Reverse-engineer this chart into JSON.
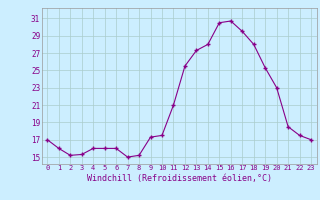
{
  "x": [
    0,
    1,
    2,
    3,
    4,
    5,
    6,
    7,
    8,
    9,
    10,
    11,
    12,
    13,
    14,
    15,
    16,
    17,
    18,
    19,
    20,
    21,
    22,
    23
  ],
  "y": [
    17,
    16,
    15.2,
    15.3,
    16,
    16,
    16,
    15,
    15.2,
    17.3,
    17.5,
    21,
    25.5,
    27.3,
    28,
    30.5,
    30.7,
    29.5,
    28,
    25.3,
    23,
    18.5,
    17.5,
    17
  ],
  "line_color": "#880088",
  "marker_color": "#880088",
  "bg_color": "#cceeff",
  "grid_color": "#aacccc",
  "xlabel": "Windchill (Refroidissement éolien,°C)",
  "xlabel_color": "#880088",
  "tick_color": "#880088",
  "yticks": [
    15,
    17,
    19,
    21,
    23,
    25,
    27,
    29,
    31
  ],
  "ylim": [
    14.2,
    32.2
  ],
  "xlim": [
    -0.5,
    23.5
  ],
  "xtick_labels": [
    "0",
    "1",
    "2",
    "3",
    "4",
    "5",
    "6",
    "7",
    "8",
    "9",
    "10",
    "11",
    "12",
    "13",
    "14",
    "15",
    "16",
    "17",
    "18",
    "19",
    "20",
    "21",
    "22",
    "23"
  ]
}
